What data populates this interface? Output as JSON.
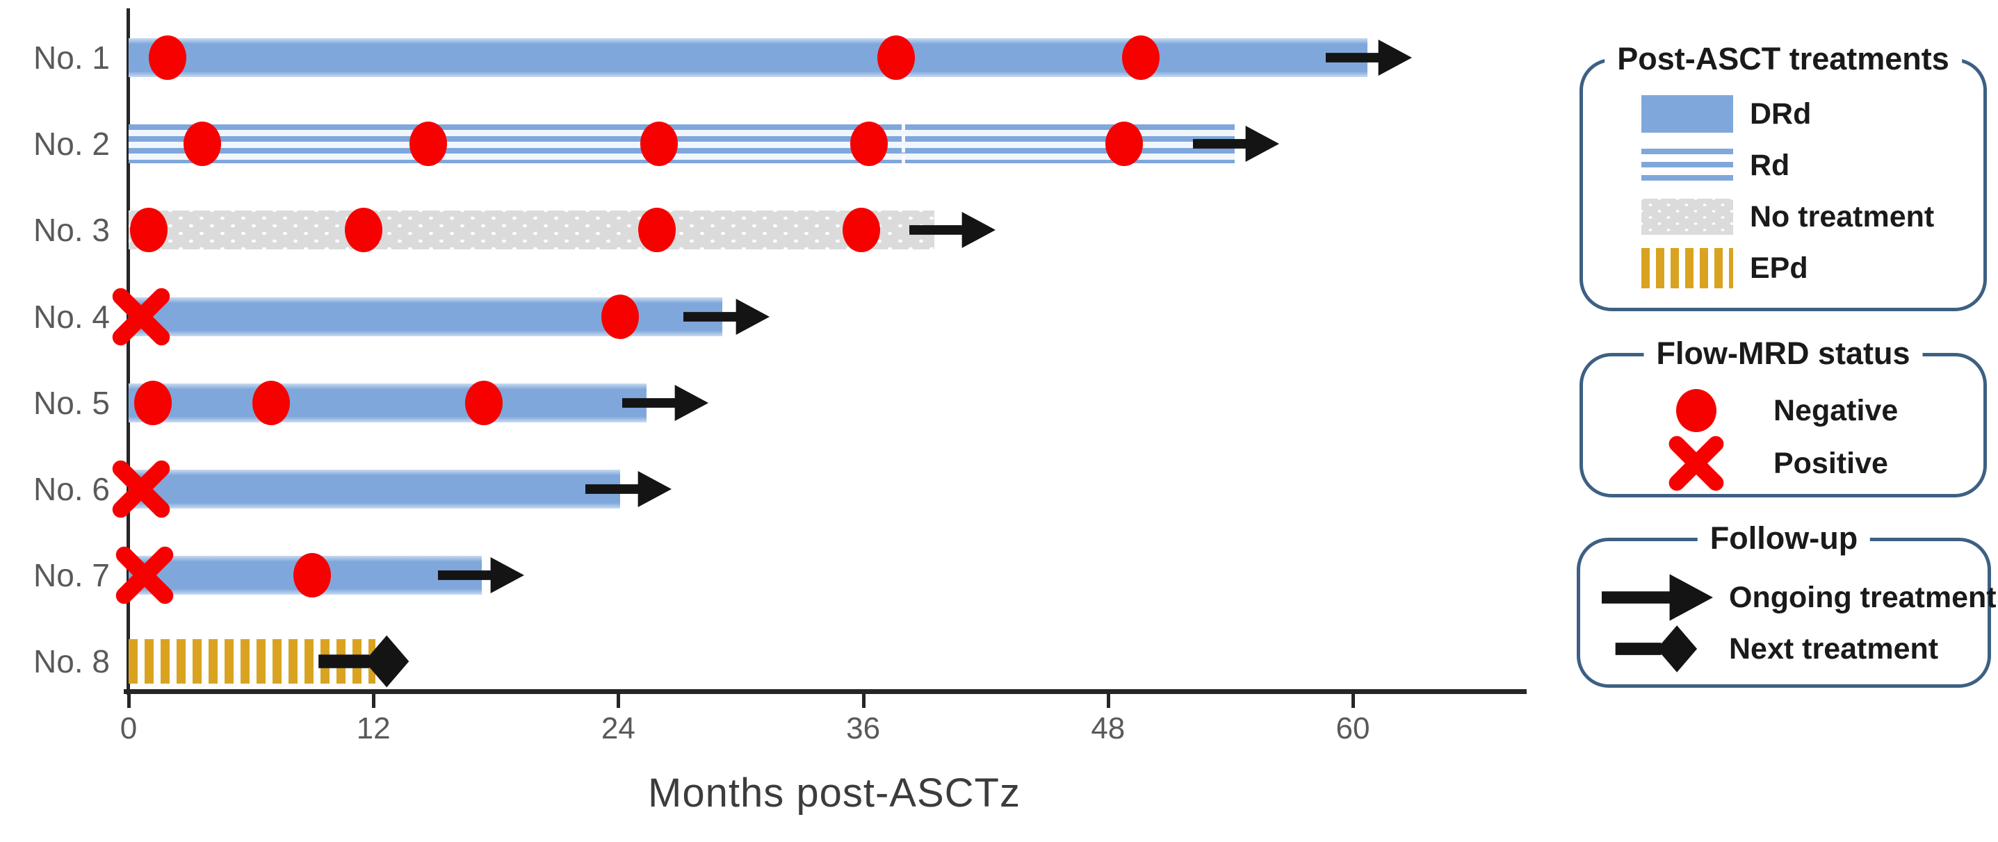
{
  "chart_data": {
    "type": "swimmer",
    "xlabel": "Months post-ASCTz",
    "x_ticks": [
      0,
      12,
      24,
      36,
      48,
      60
    ],
    "xlim": [
      0,
      68
    ],
    "grid": false,
    "patients": [
      {
        "label": "No. 1",
        "treatment": "DRd",
        "start": 0,
        "end": 60.7,
        "markers": [
          {
            "status": "negative",
            "month": 1.9
          },
          {
            "status": "negative",
            "month": 37.6
          },
          {
            "status": "negative",
            "month": 49.6
          }
        ],
        "followup": {
          "type": "ongoing",
          "tip_month": 62.9
        }
      },
      {
        "label": "No. 2",
        "treatment": "Rd",
        "start": 0,
        "end": 54.2,
        "markers": [
          {
            "status": "negative",
            "month": 3.6
          },
          {
            "status": "negative",
            "month": 14.7
          },
          {
            "status": "negative",
            "month": 26.0
          },
          {
            "status": "negative",
            "month": 36.3
          },
          {
            "status": "negative",
            "month": 48.8
          }
        ],
        "divider_month": 37.9,
        "followup": {
          "type": "ongoing",
          "tip_month": 56.4
        }
      },
      {
        "label": "No. 3",
        "treatment": "No treatment",
        "start": 0,
        "end": 39.5,
        "markers": [
          {
            "status": "negative",
            "month": 1.0
          },
          {
            "status": "negative",
            "month": 11.5
          },
          {
            "status": "negative",
            "month": 25.9
          },
          {
            "status": "negative",
            "month": 35.9
          }
        ],
        "followup": {
          "type": "ongoing",
          "tip_month": 42.5
        }
      },
      {
        "label": "No. 4",
        "treatment": "DRd",
        "start": 0,
        "end": 29.1,
        "markers": [
          {
            "status": "positive",
            "month": 0.6
          },
          {
            "status": "negative",
            "month": 24.1
          }
        ],
        "followup": {
          "type": "ongoing",
          "tip_month": 31.4
        }
      },
      {
        "label": "No. 5",
        "treatment": "DRd",
        "start": 0,
        "end": 25.4,
        "markers": [
          {
            "status": "negative",
            "month": 1.2
          },
          {
            "status": "negative",
            "month": 7.0
          },
          {
            "status": "negative",
            "month": 17.4
          }
        ],
        "followup": {
          "type": "ongoing",
          "tip_month": 28.4
        }
      },
      {
        "label": "No. 6",
        "treatment": "DRd",
        "start": 0,
        "end": 24.1,
        "markers": [
          {
            "status": "positive",
            "month": 0.6
          }
        ],
        "followup": {
          "type": "ongoing",
          "tip_month": 26.6
        }
      },
      {
        "label": "No. 7",
        "treatment": "DRd",
        "start": 0,
        "end": 17.3,
        "markers": [
          {
            "status": "positive",
            "month": 0.8
          },
          {
            "status": "negative",
            "month": 9.0
          }
        ],
        "followup": {
          "type": "ongoing",
          "tip_month": 19.4
        }
      },
      {
        "label": "No. 8",
        "treatment": "EPd",
        "start": 0,
        "end": 12.1,
        "markers": [],
        "followup": {
          "type": "next",
          "tip_month": 14.0
        }
      }
    ]
  },
  "legend": {
    "treatments": {
      "title": "Post-ASCT treatments",
      "items": [
        {
          "label": "DRd",
          "pattern": "solid-blue"
        },
        {
          "label": "Rd",
          "pattern": "blue-horizontal-stripes"
        },
        {
          "label": "No treatment",
          "pattern": "gray-dots"
        },
        {
          "label": "EPd",
          "pattern": "gold-vertical-stripes"
        }
      ]
    },
    "mrd": {
      "title": "Flow-MRD status",
      "items": [
        {
          "label": "Negative",
          "symbol": "red-circle"
        },
        {
          "label": "Positive",
          "symbol": "red-x"
        }
      ]
    },
    "followup": {
      "title": "Follow-up",
      "items": [
        {
          "label": "Ongoing treatment",
          "symbol": "black-arrow"
        },
        {
          "label": "Next treatment",
          "symbol": "black-arrow-diamond"
        }
      ]
    }
  },
  "colors": {
    "bar_blue": "#7FA7DB",
    "bar_gold": "#D9A321",
    "bar_gray": "#DBDBDB",
    "marker_red": "#F60000",
    "arrow_black": "#141414",
    "legend_border": "#3D6083",
    "text_gray": "#595959",
    "axis_black": "#262626"
  }
}
